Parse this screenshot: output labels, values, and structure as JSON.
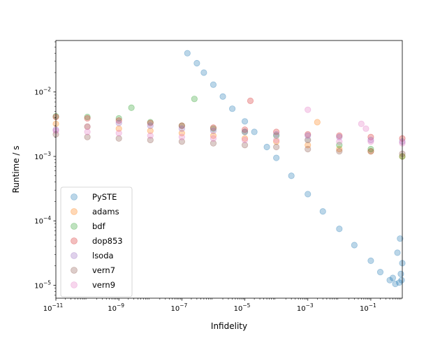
{
  "chart_data": {
    "type": "scatter",
    "xlabel": "Infidelity",
    "ylabel": "Runtime / s",
    "xscale": "log",
    "yscale": "log",
    "xlim": [
      1e-11,
      1
    ],
    "ylim": [
      6.3e-06,
      0.063
    ],
    "x_ticks": [
      {
        "value": 1e-11,
        "base": "10",
        "exp": "−11"
      },
      {
        "value": 1e-09,
        "base": "10",
        "exp": "−9"
      },
      {
        "value": 1e-07,
        "base": "10",
        "exp": "−7"
      },
      {
        "value": 1e-05,
        "base": "10",
        "exp": "−5"
      },
      {
        "value": 0.001,
        "base": "10",
        "exp": "−3"
      },
      {
        "value": 0.1,
        "base": "10",
        "exp": "−1"
      }
    ],
    "y_ticks": [
      {
        "value": 1e-05,
        "base": "10",
        "exp": "−5"
      },
      {
        "value": 0.0001,
        "base": "10",
        "exp": "−4"
      },
      {
        "value": 0.001,
        "base": "10",
        "exp": "−3"
      },
      {
        "value": 0.01,
        "base": "10",
        "exp": "−2"
      }
    ],
    "grid": false,
    "legend_position": "lower-left",
    "marker_alpha": 0.3,
    "series": [
      {
        "name": "PySTE",
        "color": "#1f77b4",
        "x": [
          1.5e-07,
          3e-07,
          5e-07,
          1e-06,
          2e-06,
          4e-06,
          1e-05,
          2e-05,
          5e-05,
          0.0001,
          0.0003,
          0.001,
          0.003,
          0.01,
          0.03,
          0.1,
          0.2,
          0.4,
          0.6,
          0.8,
          0.9,
          1.0,
          0.95,
          0.7,
          0.85,
          0.5
        ],
        "y": [
          0.04,
          0.028,
          0.02,
          0.013,
          0.0085,
          0.0055,
          0.0035,
          0.0024,
          0.0014,
          0.00095,
          0.0005,
          0.00026,
          0.00014,
          7.5e-05,
          4.2e-05,
          2.4e-05,
          1.6e-05,
          1.2e-05,
          1.05e-05,
          1.1e-05,
          1.5e-05,
          2.2e-05,
          1.2e-05,
          3.2e-05,
          5.3e-05,
          1.3e-05
        ]
      },
      {
        "name": "adams",
        "color": "#ff7f0e",
        "x": [
          1e-11,
          1e-10,
          1e-09,
          1e-08,
          1e-07,
          1e-06,
          1e-05,
          0.0001,
          0.001,
          0.01,
          0.1,
          1.0,
          0.002
        ],
        "y": [
          0.0032,
          0.0029,
          0.0027,
          0.0025,
          0.0023,
          0.0021,
          0.0019,
          0.0017,
          0.0015,
          0.0013,
          0.0012,
          0.001,
          0.0034
        ]
      },
      {
        "name": "bdf",
        "color": "#2ca02c",
        "x": [
          1e-11,
          1e-10,
          1e-09,
          1e-08,
          1e-07,
          1e-06,
          1e-05,
          0.0001,
          0.001,
          0.01,
          0.1,
          1.0,
          2.5e-07,
          2.5e-09
        ],
        "y": [
          0.0042,
          0.0041,
          0.0039,
          0.0034,
          0.003,
          0.0027,
          0.0024,
          0.0021,
          0.0018,
          0.0015,
          0.0013,
          0.001,
          0.0078,
          0.0057
        ]
      },
      {
        "name": "dop853",
        "color": "#d62728",
        "x": [
          1e-11,
          1e-10,
          1e-09,
          1e-08,
          1e-07,
          1e-06,
          1e-05,
          0.0001,
          0.001,
          0.01,
          0.1,
          1.0,
          1.5e-05
        ],
        "y": [
          0.0041,
          0.0039,
          0.0036,
          0.0033,
          0.003,
          0.0028,
          0.0026,
          0.0024,
          0.0022,
          0.0021,
          0.002,
          0.0019,
          0.0073
        ]
      },
      {
        "name": "lsoda",
        "color": "#9467bd",
        "x": [
          1e-11,
          1e-10,
          1e-09,
          1e-08,
          1e-07,
          1e-06,
          1e-05,
          0.0001,
          0.001,
          0.01,
          0.1,
          1.0
        ],
        "y": [
          0.0026,
          0.0029,
          0.0033,
          0.003,
          0.0027,
          0.0025,
          0.0024,
          0.0022,
          0.0021,
          0.002,
          0.0018,
          0.0017
        ]
      },
      {
        "name": "vern7",
        "color": "#8c564b",
        "x": [
          1e-11,
          1e-10,
          1e-09,
          1e-08,
          1e-07,
          1e-06,
          1e-05,
          0.0001,
          0.001,
          0.01,
          0.1,
          1.0
        ],
        "y": [
          0.0022,
          0.002,
          0.0019,
          0.0018,
          0.0017,
          0.0016,
          0.0015,
          0.0014,
          0.0013,
          0.0012,
          0.0012,
          0.0011
        ]
      },
      {
        "name": "vern9",
        "color": "#e377c2",
        "x": [
          1e-11,
          1e-10,
          1e-09,
          1e-08,
          1e-07,
          1e-06,
          1e-05,
          0.0001,
          0.001,
          0.01,
          0.1,
          1.0,
          0.001,
          0.05,
          0.07
        ],
        "y": [
          0.0025,
          0.0024,
          0.0023,
          0.0021,
          0.002,
          0.0019,
          0.0018,
          0.0018,
          0.0018,
          0.0017,
          0.0017,
          0.0016,
          0.0053,
          0.0032,
          0.0027
        ]
      }
    ]
  }
}
